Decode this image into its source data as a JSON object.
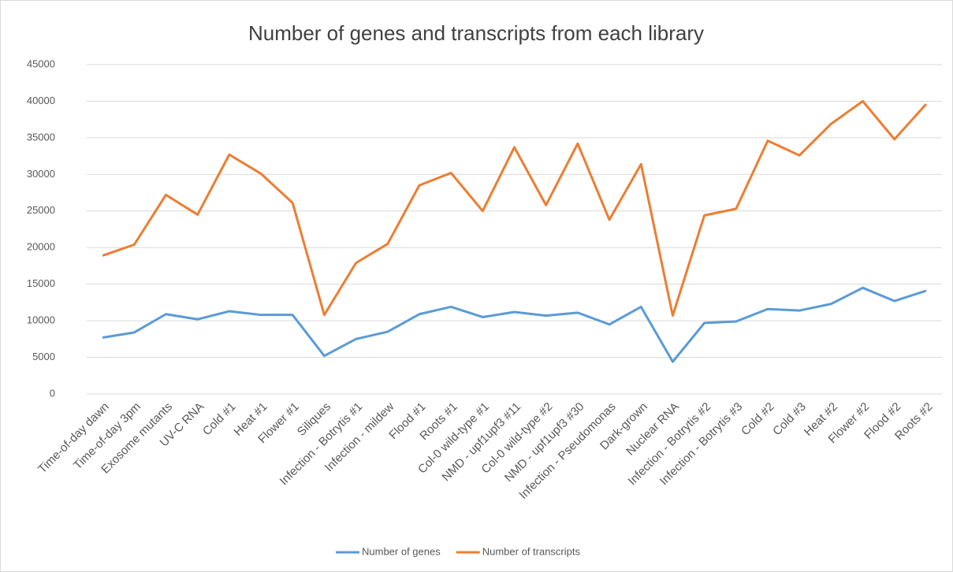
{
  "chart_data": {
    "type": "line",
    "title": "Number of genes and transcripts from each library",
    "categories": [
      "Time-of-day dawn",
      "Time-of-day 3pm",
      "Exosome mutants",
      "UV-C RNA",
      "Cold #1",
      "Heat #1",
      "Flower #1",
      "Siliques",
      "Infection - Botrytis #1",
      "Infection - mildew",
      "Flood #1",
      "Roots #1",
      "Col-0 wild-type #1",
      "NMD - upf1upf3 #11",
      "Col-0 wild-type #2",
      "NMD - upf1upf3 #30",
      "Infection - Pseudomonas",
      "Dark-grown",
      "Nuclear RNA",
      "Infection - Botrytis #2",
      "Infection - Botrytis #3",
      "Cold #2",
      "Cold #3",
      "Heat #2",
      "Flower #2",
      "Flood #2",
      "Roots #2"
    ],
    "series": [
      {
        "name": "Number of genes",
        "color": "#5b9bd5",
        "values": [
          7700,
          8400,
          10900,
          10200,
          11300,
          10800,
          10800,
          5200,
          7500,
          8500,
          10900,
          11900,
          10500,
          11200,
          10700,
          11100,
          9500,
          11900,
          4400,
          9700,
          9900,
          11600,
          11400,
          12300,
          14500,
          12700,
          14100
        ]
      },
      {
        "name": "Number of transcripts",
        "color": "#ed7d31",
        "values": [
          18900,
          20400,
          27200,
          24500,
          32700,
          30100,
          26100,
          10800,
          17900,
          20500,
          28500,
          30200,
          25000,
          33700,
          25800,
          34200,
          23800,
          31400,
          10700,
          24400,
          25300,
          34600,
          32600,
          36900,
          40000,
          34800,
          39600
        ]
      }
    ],
    "ylim": [
      0,
      45000
    ],
    "yticks": [
      0,
      5000,
      10000,
      15000,
      20000,
      25000,
      30000,
      35000,
      40000,
      45000
    ],
    "grid": true,
    "legend": "bottom"
  }
}
